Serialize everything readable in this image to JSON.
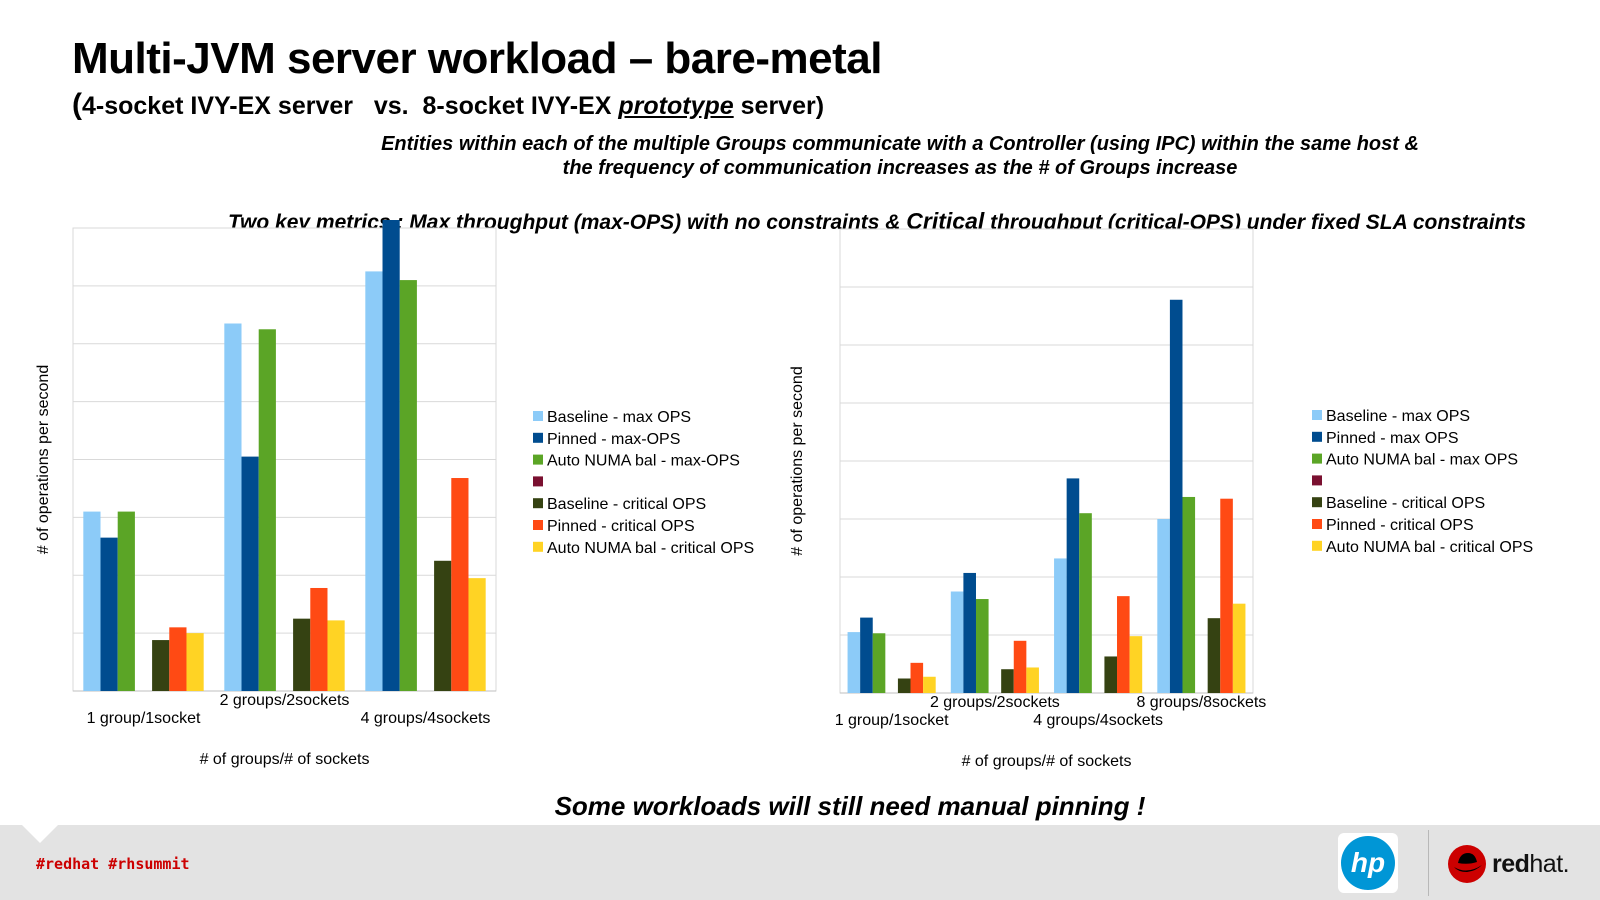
{
  "slide": {
    "title": "Multi-JVM server workload – bare-metal",
    "subtitle_paren_open": "(",
    "subtitle_part1": "4-socket IVY-EX server   vs.  8-socket IVY-EX ",
    "subtitle_proto": "prototype",
    "subtitle_part2": " server)",
    "description_line1": "Entities within each of the multiple Groups communicate with a Controller (using IPC) within the same host &",
    "description_line2": "the frequency of communication increases as the # of Groups increase",
    "metrics_part1": "Two key metrics : Max throughput (max-OPS) with no constraints & ",
    "metrics_critical": "Critical",
    "metrics_part2": " throughput (critical-OPS) under fixed SLA constraints",
    "conclusion": "Some workloads will still need manual pinning !"
  },
  "footer": {
    "hashtags": "#redhat  #rhsummit",
    "hp_logo_text": "hp",
    "redhat_logo_text_bold": "red",
    "redhat_logo_text": "hat."
  },
  "colors": {
    "baseline_max": "#8ccbf8",
    "pinned_max": "#004c8f",
    "autonuma_max": "#5ba526",
    "spacer": "#7a1030",
    "baseline_crit": "#354212",
    "pinned_crit": "#ff4a14",
    "autonuma_crit": "#ffd324",
    "hp_blue": "#0096d6",
    "redhat_red": "#cc0000"
  },
  "chart_data": [
    {
      "type": "bar",
      "xlabel": "# of groups/# of sockets",
      "ylabel": "# of operations per second",
      "categories": [
        "1 group/1socket",
        "2 groups/2sockets",
        "4 groups/4sockets"
      ],
      "ylim": [
        0,
        8
      ],
      "grid": true,
      "legend_position": "right",
      "series": [
        {
          "name": "Baseline - max OPS",
          "values": [
            3.1,
            6.35,
            7.25
          ]
        },
        {
          "name": "Pinned - max-OPS",
          "values": [
            2.65,
            4.05,
            8.15
          ]
        },
        {
          "name": "Auto NUMA bal - max-OPS",
          "values": [
            3.1,
            6.25,
            7.1
          ]
        },
        {
          "name": "",
          "values": [
            0,
            0,
            0
          ]
        },
        {
          "name": "Baseline - critical OPS",
          "values": [
            0.88,
            1.25,
            2.25
          ]
        },
        {
          "name": "Pinned - critical OPS",
          "values": [
            1.1,
            1.78,
            3.68
          ]
        },
        {
          "name": "Auto NUMA bal - critical OPS",
          "values": [
            1.0,
            1.22,
            1.95
          ]
        }
      ]
    },
    {
      "type": "bar",
      "xlabel": "# of groups/# of sockets",
      "ylabel": "# of operations per second",
      "categories": [
        "1 group/1socket",
        "2 groups/2sockets",
        "4 groups/4sockets",
        "8 groups/8sockets"
      ],
      "ylim": [
        0,
        8
      ],
      "grid": true,
      "legend_position": "right",
      "series": [
        {
          "name": "Baseline - max OPS",
          "values": [
            1.05,
            1.75,
            2.32,
            3.0
          ]
        },
        {
          "name": "Pinned - max OPS",
          "values": [
            1.3,
            2.07,
            3.7,
            6.78
          ]
        },
        {
          "name": "Auto NUMA bal - max OPS",
          "values": [
            1.03,
            1.62,
            3.1,
            3.38
          ]
        },
        {
          "name": "",
          "values": [
            0,
            0,
            0,
            0
          ]
        },
        {
          "name": "Baseline - critical OPS",
          "values": [
            0.25,
            0.41,
            0.63,
            1.29
          ]
        },
        {
          "name": "Pinned - critical OPS",
          "values": [
            0.52,
            0.9,
            1.67,
            3.35
          ]
        },
        {
          "name": "Auto NUMA bal - critical OPS",
          "values": [
            0.28,
            0.44,
            0.98,
            1.54
          ]
        }
      ]
    }
  ]
}
